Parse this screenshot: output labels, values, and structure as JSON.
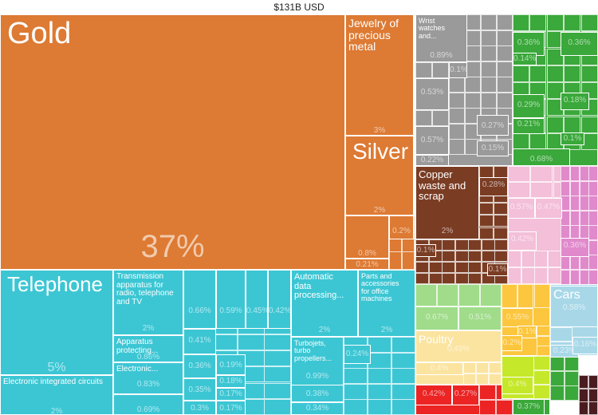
{
  "chart_data": {
    "type": "treemap",
    "title": "$131B USD",
    "colors": {
      "orange": "#dd7a33",
      "cyan": "#3cc6d4",
      "gray": "#9a9a9a",
      "green": "#3aa83a",
      "brown": "#7a3d24",
      "pink": "#f3bfd9",
      "magenta": "#e08acb",
      "light_green": "#a0dc8a",
      "cream": "#fbe4a0",
      "yellow": "#fcc63e",
      "light_blue": "#a8d8e8",
      "red": "#ec2424",
      "lime": "#c6e82a",
      "dark_maroon": "#4a1c20"
    },
    "items": [
      {
        "name": "Gold",
        "value": "37%",
        "color": "orange",
        "size": "big"
      },
      {
        "name": "Jewelry of\nprecious\nmetal",
        "value": "3%",
        "color": "orange",
        "size": "mid"
      },
      {
        "name": "Silver",
        "value": "2%",
        "color": "orange",
        "size": "large"
      },
      {
        "name": "",
        "value": "0.8%",
        "color": "orange"
      },
      {
        "name": "",
        "value": "0.21%",
        "color": "orange"
      },
      {
        "name": "",
        "value": "0.2%",
        "color": "orange"
      },
      {
        "name": "Telephone",
        "value": "5%",
        "color": "cyan",
        "size": "large"
      },
      {
        "name": "Electronic integrated circuits",
        "value": "2%",
        "color": "cyan",
        "size": "small"
      },
      {
        "name": "Transmission\napparatus for\nradio, telephone\nand TV",
        "value": "2%",
        "color": "cyan",
        "size": "small"
      },
      {
        "name": "Apparatus\nprotecting...",
        "value": "0.86%",
        "color": "cyan",
        "size": "small"
      },
      {
        "name": "Electronic...",
        "value": "0.83%",
        "color": "cyan",
        "size": "small"
      },
      {
        "name": "",
        "value": "0.69%",
        "color": "cyan"
      },
      {
        "name": "Automatic\ndata\nprocessing...",
        "value": "2%",
        "color": "cyan",
        "size": "mid"
      },
      {
        "name": "Parts and\naccessories\nfor office\nmachines",
        "value": "2%",
        "color": "cyan",
        "size": "small"
      },
      {
        "name": "Turbojets,\nturbo\npropellers...",
        "value": "0.99%",
        "color": "cyan",
        "size": "small"
      },
      {
        "name": "",
        "value": "0.66%",
        "color": "cyan"
      },
      {
        "name": "",
        "value": "0.59%",
        "color": "cyan"
      },
      {
        "name": "",
        "value": "0.45%",
        "color": "cyan"
      },
      {
        "name": "",
        "value": "0.42%",
        "color": "cyan"
      },
      {
        "name": "",
        "value": "0.41%",
        "color": "cyan"
      },
      {
        "name": "",
        "value": "0.36%",
        "color": "cyan"
      },
      {
        "name": "",
        "value": "0.35%",
        "color": "cyan"
      },
      {
        "name": "",
        "value": "0.3%",
        "color": "cyan"
      },
      {
        "name": "",
        "value": "0.19%",
        "color": "cyan"
      },
      {
        "name": "",
        "value": "0.18%",
        "color": "cyan"
      },
      {
        "name": "",
        "value": "0.17%",
        "color": "cyan"
      },
      {
        "name": "",
        "value": "0.17%",
        "color": "cyan"
      },
      {
        "name": "",
        "value": "0.38%",
        "color": "cyan"
      },
      {
        "name": "",
        "value": "0.34%",
        "color": "cyan"
      },
      {
        "name": "",
        "value": "0.24%",
        "color": "cyan"
      },
      {
        "name": "Wrist\nwatches\nand...",
        "value": "0.89%",
        "color": "gray",
        "size": "tiny"
      },
      {
        "name": "",
        "value": "0.1%",
        "color": "gray"
      },
      {
        "name": "",
        "value": "0.53%",
        "color": "gray"
      },
      {
        "name": "",
        "value": "0.57%",
        "color": "gray"
      },
      {
        "name": "",
        "value": "0.27%",
        "color": "gray"
      },
      {
        "name": "",
        "value": "0.15%",
        "color": "gray"
      },
      {
        "name": "",
        "value": "0.22%",
        "color": "gray"
      },
      {
        "name": "",
        "value": "0.36%",
        "color": "green"
      },
      {
        "name": "",
        "value": "0.36%",
        "color": "green"
      },
      {
        "name": "",
        "value": "0.14%",
        "color": "green"
      },
      {
        "name": "",
        "value": "0.29%",
        "color": "green"
      },
      {
        "name": "",
        "value": "0.18%",
        "color": "green"
      },
      {
        "name": "",
        "value": "0.21%",
        "color": "green"
      },
      {
        "name": "",
        "value": "0.1%",
        "color": "green"
      },
      {
        "name": "",
        "value": "0.68%",
        "color": "green"
      },
      {
        "name": "Copper\nwaste and\nscrap",
        "value": "2%",
        "color": "brown",
        "size": "mid"
      },
      {
        "name": "",
        "value": "0.28%",
        "color": "brown"
      },
      {
        "name": "",
        "value": "0.1%",
        "color": "brown"
      },
      {
        "name": "",
        "value": "0.1%",
        "color": "brown"
      },
      {
        "name": "",
        "value": "0.57%",
        "color": "pink"
      },
      {
        "name": "",
        "value": "0.47%",
        "color": "pink"
      },
      {
        "name": "",
        "value": "0.42%",
        "color": "pink"
      },
      {
        "name": "",
        "value": "0.36%",
        "color": "magenta"
      },
      {
        "name": "",
        "value": "0.67%",
        "color": "light_green"
      },
      {
        "name": "",
        "value": "0.51%",
        "color": "light_green"
      },
      {
        "name": "Poultry",
        "value": "0.49%",
        "color": "cream",
        "size": "mid"
      },
      {
        "name": "",
        "value": "0.4%",
        "color": "cream"
      },
      {
        "name": "",
        "value": "0.55%",
        "color": "yellow"
      },
      {
        "name": "",
        "value": "0.1%",
        "color": "yellow"
      },
      {
        "name": "",
        "value": "0.2%",
        "color": "yellow"
      },
      {
        "name": "Cars",
        "value": "0.58%",
        "color": "light_blue",
        "size": "mid"
      },
      {
        "name": "",
        "value": "0.23%",
        "color": "light_blue"
      },
      {
        "name": "",
        "value": "0.16%",
        "color": "light_blue"
      },
      {
        "name": "",
        "value": "0.42%",
        "color": "red"
      },
      {
        "name": "",
        "value": "0.27%",
        "color": "red"
      },
      {
        "name": "",
        "value": "0.4%",
        "color": "lime"
      },
      {
        "name": "",
        "value": "0.37%",
        "color": "green"
      }
    ]
  }
}
